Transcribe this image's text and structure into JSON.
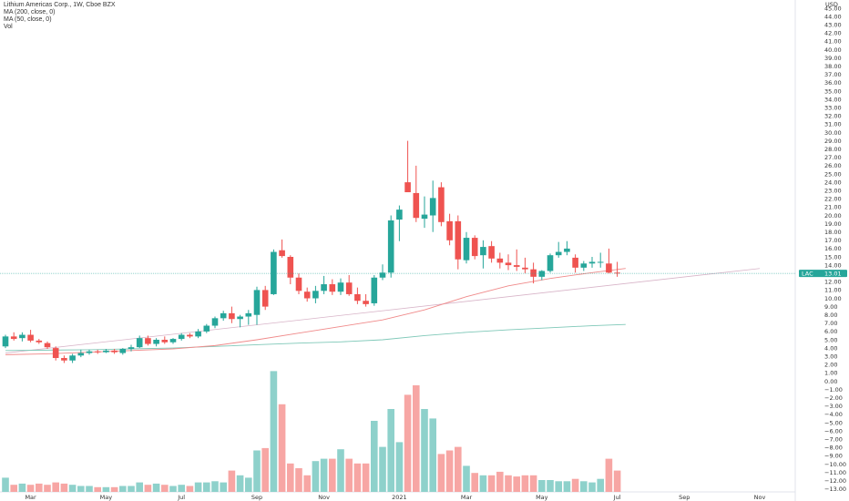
{
  "legend": {
    "line1": "Lithium Americas Corp., 1W, Cboe BZX",
    "line2": "MA (200, close, 0)",
    "line3": "MA (50, close, 0)",
    "line4": "Vol"
  },
  "currency": "USD",
  "last_price": {
    "symbol": "LAC",
    "value": "13.01",
    "numeric": 13.01
  },
  "colors": {
    "up": "#26a69a",
    "down": "#ef5350",
    "vol_up": "#8ed1cb",
    "vol_down": "#f7a6a4",
    "ma200": "#7fc8b8",
    "ma50": "#f08a8a",
    "trend": "#d8b4c8",
    "last_price_bg": "#26a69a"
  },
  "chart_data": {
    "type": "candlestick",
    "y_axis": {
      "range": [
        -13,
        45
      ],
      "ticks": [
        "45.00",
        "44.00",
        "43.00",
        "42.00",
        "41.00",
        "40.00",
        "39.00",
        "38.00",
        "37.00",
        "36.00",
        "35.00",
        "34.00",
        "33.00",
        "32.00",
        "31.00",
        "30.00",
        "29.00",
        "28.00",
        "27.00",
        "26.00",
        "25.00",
        "24.00",
        "23.00",
        "22.00",
        "21.00",
        "20.00",
        "19.00",
        "18.00",
        "17.00",
        "16.00",
        "15.00",
        "14.00",
        "13.00",
        "12.00",
        "11.00",
        "10.00",
        "9.00",
        "8.00",
        "7.00",
        "6.00",
        "5.00",
        "4.00",
        "3.00",
        "2.00",
        "1.00",
        "0.00",
        "−1.00",
        "−2.00",
        "−3.00",
        "−4.00",
        "−5.00",
        "−6.00",
        "−7.00",
        "−8.00",
        "−9.00",
        "−10.00",
        "−11.00",
        "−12.00",
        "−13.00"
      ]
    },
    "x_axis": {
      "labels": [
        {
          "text": "Mar",
          "week": 3
        },
        {
          "text": "May",
          "week": 12
        },
        {
          "text": "Jul",
          "week": 21
        },
        {
          "text": "Sep",
          "week": 30
        },
        {
          "text": "Nov",
          "week": 38
        },
        {
          "text": "2021",
          "week": 47
        },
        {
          "text": "Mar",
          "week": 55
        },
        {
          "text": "May",
          "week": 64
        },
        {
          "text": "Jul",
          "week": 73
        },
        {
          "text": "Sep",
          "week": 81
        },
        {
          "text": "Nov",
          "week": 90
        }
      ]
    },
    "candles": [
      {
        "o": 4.2,
        "h": 5.6,
        "l": 4.0,
        "c": 5.4,
        "v": 6
      },
      {
        "o": 5.4,
        "h": 5.9,
        "l": 4.9,
        "c": 5.1,
        "v": 3
      },
      {
        "o": 5.2,
        "h": 5.9,
        "l": 4.8,
        "c": 5.6,
        "v": 3.5
      },
      {
        "o": 5.6,
        "h": 6.2,
        "l": 4.7,
        "c": 4.9,
        "v": 3
      },
      {
        "o": 4.9,
        "h": 5.1,
        "l": 4.5,
        "c": 4.7,
        "v": 3.5
      },
      {
        "o": 4.6,
        "h": 4.8,
        "l": 3.9,
        "c": 4.1,
        "v": 3
      },
      {
        "o": 4.0,
        "h": 4.2,
        "l": 2.5,
        "c": 2.8,
        "v": 4
      },
      {
        "o": 2.8,
        "h": 3.1,
        "l": 2.2,
        "c": 2.5,
        "v": 3.5
      },
      {
        "o": 2.5,
        "h": 3.3,
        "l": 2.2,
        "c": 3.1,
        "v": 3
      },
      {
        "o": 3.1,
        "h": 3.8,
        "l": 2.9,
        "c": 3.4,
        "v": 2.5
      },
      {
        "o": 3.4,
        "h": 3.8,
        "l": 3.2,
        "c": 3.6,
        "v": 2.5
      },
      {
        "o": 3.6,
        "h": 3.8,
        "l": 3.3,
        "c": 3.5,
        "v": 2
      },
      {
        "o": 3.5,
        "h": 3.9,
        "l": 3.4,
        "c": 3.7,
        "v": 2
      },
      {
        "o": 3.7,
        "h": 3.9,
        "l": 3.3,
        "c": 3.5,
        "v": 2
      },
      {
        "o": 3.4,
        "h": 4.0,
        "l": 3.2,
        "c": 3.9,
        "v": 2.5
      },
      {
        "o": 3.9,
        "h": 4.4,
        "l": 3.6,
        "c": 4.1,
        "v": 2.5
      },
      {
        "o": 4.1,
        "h": 5.5,
        "l": 4.0,
        "c": 5.2,
        "v": 4
      },
      {
        "o": 5.2,
        "h": 5.5,
        "l": 4.3,
        "c": 4.5,
        "v": 3
      },
      {
        "o": 4.5,
        "h": 5.2,
        "l": 4.2,
        "c": 5.0,
        "v": 3.5
      },
      {
        "o": 5.0,
        "h": 5.4,
        "l": 4.5,
        "c": 4.7,
        "v": 3
      },
      {
        "o": 4.7,
        "h": 5.2,
        "l": 4.5,
        "c": 5.1,
        "v": 2.5
      },
      {
        "o": 5.1,
        "h": 5.8,
        "l": 4.9,
        "c": 5.6,
        "v": 3
      },
      {
        "o": 5.6,
        "h": 5.8,
        "l": 5.2,
        "c": 5.4,
        "v": 2.5
      },
      {
        "o": 5.4,
        "h": 6.3,
        "l": 5.2,
        "c": 6.0,
        "v": 4
      },
      {
        "o": 6.0,
        "h": 6.9,
        "l": 5.8,
        "c": 6.7,
        "v": 4
      },
      {
        "o": 6.7,
        "h": 7.8,
        "l": 6.4,
        "c": 7.6,
        "v": 4.5
      },
      {
        "o": 7.6,
        "h": 8.5,
        "l": 7.3,
        "c": 8.2,
        "v": 4
      },
      {
        "o": 8.2,
        "h": 9.0,
        "l": 7.0,
        "c": 7.5,
        "v": 9
      },
      {
        "o": 7.5,
        "h": 8.0,
        "l": 6.5,
        "c": 7.8,
        "v": 7
      },
      {
        "o": 7.8,
        "h": 8.6,
        "l": 6.8,
        "c": 8.2,
        "v": 6
      },
      {
        "o": 8.0,
        "h": 11.4,
        "l": 6.8,
        "c": 11.0,
        "v": 17.5
      },
      {
        "o": 11.0,
        "h": 11.5,
        "l": 8.6,
        "c": 9.0,
        "v": 18.5
      },
      {
        "o": 10.5,
        "h": 15.9,
        "l": 10.4,
        "c": 15.6,
        "v": 51
      },
      {
        "o": 15.8,
        "h": 17.1,
        "l": 14.9,
        "c": 15.1,
        "v": 37
      },
      {
        "o": 15.0,
        "h": 15.2,
        "l": 11.7,
        "c": 12.5,
        "v": 12
      },
      {
        "o": 12.5,
        "h": 13.0,
        "l": 10.5,
        "c": 10.9,
        "v": 10
      },
      {
        "o": 10.8,
        "h": 11.3,
        "l": 9.6,
        "c": 10.0,
        "v": 7
      },
      {
        "o": 10.0,
        "h": 11.5,
        "l": 9.4,
        "c": 10.9,
        "v": 13
      },
      {
        "o": 10.9,
        "h": 12.7,
        "l": 10.5,
        "c": 11.7,
        "v": 14
      },
      {
        "o": 11.7,
        "h": 12.3,
        "l": 10.4,
        "c": 10.8,
        "v": 14
      },
      {
        "o": 10.8,
        "h": 12.4,
        "l": 10.4,
        "c": 11.9,
        "v": 18
      },
      {
        "o": 11.9,
        "h": 12.8,
        "l": 10.3,
        "c": 10.5,
        "v": 14
      },
      {
        "o": 10.5,
        "h": 11.3,
        "l": 9.3,
        "c": 9.7,
        "v": 12
      },
      {
        "o": 9.7,
        "h": 10.5,
        "l": 9.0,
        "c": 9.3,
        "v": 12
      },
      {
        "o": 9.4,
        "h": 12.8,
        "l": 9.1,
        "c": 12.5,
        "v": 30
      },
      {
        "o": 12.5,
        "h": 14.1,
        "l": 12.2,
        "c": 13.1,
        "v": 19
      },
      {
        "o": 13.1,
        "h": 20.0,
        "l": 12.5,
        "c": 19.4,
        "v": 35
      },
      {
        "o": 19.5,
        "h": 21.2,
        "l": 16.9,
        "c": 20.7,
        "v": 21
      },
      {
        "o": 24.0,
        "h": 29.0,
        "l": 23.0,
        "c": 22.8,
        "v": 41
      },
      {
        "o": 22.7,
        "h": 26.0,
        "l": 19.2,
        "c": 19.7,
        "v": 45
      },
      {
        "o": 19.6,
        "h": 22.3,
        "l": 18.5,
        "c": 20.1,
        "v": 35
      },
      {
        "o": 20.0,
        "h": 24.2,
        "l": 18.0,
        "c": 22.1,
        "v": 31
      },
      {
        "o": 23.4,
        "h": 24.0,
        "l": 18.7,
        "c": 19.2,
        "v": 16
      },
      {
        "o": 19.3,
        "h": 20.2,
        "l": 16.4,
        "c": 17.0,
        "v": 17.5
      },
      {
        "o": 19.3,
        "h": 20.0,
        "l": 13.5,
        "c": 14.7,
        "v": 19
      },
      {
        "o": 14.6,
        "h": 18.0,
        "l": 14.2,
        "c": 17.3,
        "v": 11
      },
      {
        "o": 17.3,
        "h": 17.6,
        "l": 14.7,
        "c": 15.1,
        "v": 8
      },
      {
        "o": 15.2,
        "h": 17.0,
        "l": 13.6,
        "c": 16.2,
        "v": 7
      },
      {
        "o": 16.3,
        "h": 16.9,
        "l": 14.3,
        "c": 14.8,
        "v": 7
      },
      {
        "o": 14.8,
        "h": 15.5,
        "l": 13.6,
        "c": 14.3,
        "v": 8.5
      },
      {
        "o": 14.3,
        "h": 15.3,
        "l": 13.4,
        "c": 14.0,
        "v": 7
      },
      {
        "o": 14.0,
        "h": 15.9,
        "l": 13.3,
        "c": 13.8,
        "v": 6.5
      },
      {
        "o": 13.7,
        "h": 14.9,
        "l": 13.0,
        "c": 13.5,
        "v": 7
      },
      {
        "o": 13.5,
        "h": 14.3,
        "l": 11.8,
        "c": 12.6,
        "v": 7
      },
      {
        "o": 12.6,
        "h": 13.4,
        "l": 12.2,
        "c": 13.3,
        "v": 5
      },
      {
        "o": 13.3,
        "h": 15.4,
        "l": 13.1,
        "c": 15.2,
        "v": 5
      },
      {
        "o": 15.2,
        "h": 16.8,
        "l": 14.9,
        "c": 15.6,
        "v": 4.5
      },
      {
        "o": 15.6,
        "h": 16.9,
        "l": 15.2,
        "c": 16.0,
        "v": 4.5
      },
      {
        "o": 14.9,
        "h": 15.3,
        "l": 13.1,
        "c": 13.7,
        "v": 5.5
      },
      {
        "o": 13.7,
        "h": 14.5,
        "l": 13.3,
        "c": 14.2,
        "v": 4.5
      },
      {
        "o": 14.2,
        "h": 15.0,
        "l": 13.7,
        "c": 14.4,
        "v": 4
      },
      {
        "o": 14.4,
        "h": 15.5,
        "l": 13.7,
        "c": 14.4,
        "v": 5.5
      },
      {
        "o": 14.2,
        "h": 16.0,
        "l": 13.0,
        "c": 13.1,
        "v": 14
      },
      {
        "o": 13.1,
        "h": 14.4,
        "l": 12.6,
        "c": 13.0,
        "v": 9
      }
    ],
    "ma200": [
      [
        0,
        3.7
      ],
      [
        5,
        3.75
      ],
      [
        10,
        3.8
      ],
      [
        15,
        3.9
      ],
      [
        20,
        4.0
      ],
      [
        25,
        4.2
      ],
      [
        30,
        4.4
      ],
      [
        35,
        4.6
      ],
      [
        40,
        4.75
      ],
      [
        45,
        5.0
      ],
      [
        50,
        5.5
      ],
      [
        55,
        5.9
      ],
      [
        60,
        6.2
      ],
      [
        65,
        6.45
      ],
      [
        70,
        6.7
      ],
      [
        74,
        6.85
      ]
    ],
    "ma50": [
      [
        0,
        3.2
      ],
      [
        5,
        3.3
      ],
      [
        10,
        3.5
      ],
      [
        15,
        3.7
      ],
      [
        20,
        3.9
      ],
      [
        25,
        4.3
      ],
      [
        30,
        5.0
      ],
      [
        35,
        5.8
      ],
      [
        40,
        6.6
      ],
      [
        45,
        7.4
      ],
      [
        50,
        8.6
      ],
      [
        55,
        10.2
      ],
      [
        60,
        11.5
      ],
      [
        65,
        12.4
      ],
      [
        70,
        13.1
      ],
      [
        74,
        13.6
      ]
    ],
    "trendline": [
      [
        0,
        3.4
      ],
      [
        90,
        13.6
      ]
    ]
  }
}
